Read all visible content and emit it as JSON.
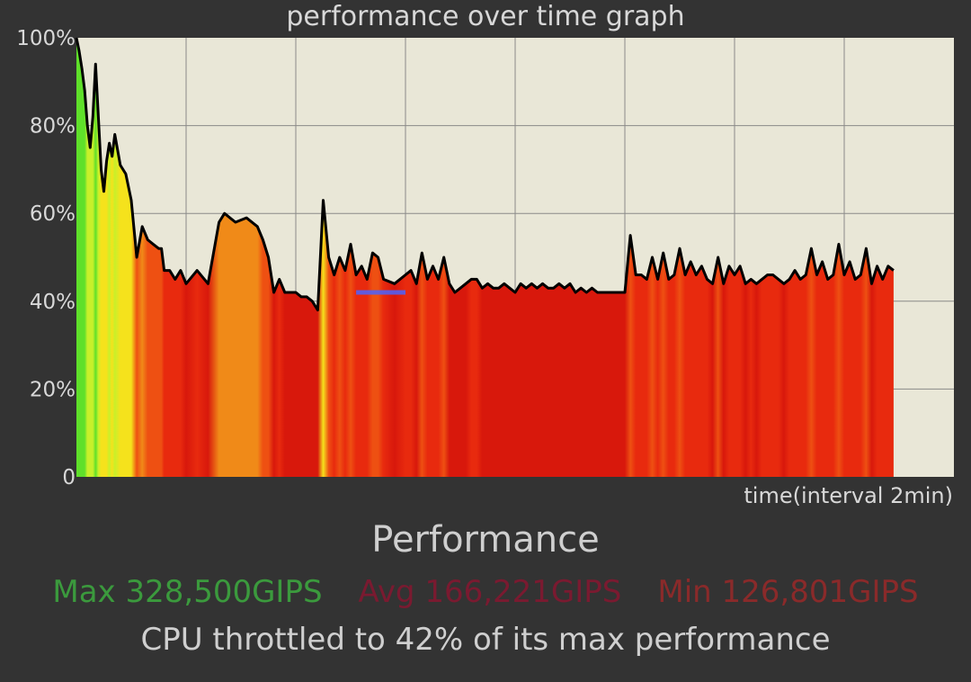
{
  "chart_data": {
    "type": "area",
    "title": "performance over time graph",
    "xlabel": "time(interval 2min)",
    "ylabel": "",
    "ylim": [
      0,
      100
    ],
    "y_ticks": [
      "0",
      "20%",
      "40%",
      "60%",
      "80%",
      "100%"
    ],
    "y_tick_values": [
      0,
      20,
      40,
      60,
      80,
      100
    ],
    "x_range": [
      0,
      16
    ],
    "x_grid": [
      2,
      4,
      6,
      8,
      10,
      12,
      14
    ],
    "grid": true,
    "series": [
      {
        "x": [
          0.0,
          0.05,
          0.1,
          0.15,
          0.2,
          0.25,
          0.3,
          0.35,
          0.4,
          0.45,
          0.5,
          0.55,
          0.6,
          0.65,
          0.7,
          0.8,
          0.9,
          1.0,
          1.1,
          1.2,
          1.3,
          1.4,
          1.5,
          1.55,
          1.6,
          1.7,
          1.8,
          1.9,
          2.0,
          2.2,
          2.4,
          2.6,
          2.7,
          2.9,
          3.1,
          3.3,
          3.4,
          3.5,
          3.6,
          3.7,
          3.8,
          3.9,
          4.0,
          4.1,
          4.2,
          4.3,
          4.4,
          4.5,
          4.6,
          4.7,
          4.8,
          4.9,
          5.0,
          5.1,
          5.2,
          5.3,
          5.4,
          5.5,
          5.6,
          5.8,
          6.0,
          6.1,
          6.2,
          6.3,
          6.4,
          6.5,
          6.6,
          6.7,
          6.8,
          6.9,
          7.0,
          7.1,
          7.2,
          7.3,
          7.4,
          7.5,
          7.6,
          7.7,
          7.8,
          7.9,
          8.0,
          8.1,
          8.2,
          8.3,
          8.4,
          8.5,
          8.6,
          8.7,
          8.8,
          8.9,
          9.0,
          9.1,
          9.2,
          9.3,
          9.4,
          9.5,
          9.6,
          9.7,
          9.8,
          9.9,
          10.0,
          10.1,
          10.2,
          10.3,
          10.4,
          10.5,
          10.6,
          10.7,
          10.8,
          10.9,
          11.0,
          11.1,
          11.2,
          11.3,
          11.4,
          11.5,
          11.6,
          11.7,
          11.8,
          11.9,
          12.0,
          12.1,
          12.2,
          12.3,
          12.4,
          12.5,
          12.6,
          12.7,
          12.8,
          12.9,
          13.0,
          13.1,
          13.2,
          13.3,
          13.4,
          13.5,
          13.6,
          13.7,
          13.8,
          13.9,
          14.0,
          14.1,
          14.2,
          14.3,
          14.4,
          14.5,
          14.6,
          14.7,
          14.8,
          14.9
        ],
        "values": [
          100,
          97,
          93,
          88,
          80,
          75,
          82,
          94,
          82,
          70,
          65,
          72,
          76,
          73,
          78,
          71,
          69,
          63,
          50,
          57,
          54,
          53,
          52,
          52,
          47,
          47,
          45,
          47,
          44,
          47,
          44,
          58,
          60,
          58,
          59,
          57,
          54,
          50,
          42,
          45,
          42,
          42,
          42,
          41,
          41,
          40,
          38,
          63,
          50,
          46,
          50,
          47,
          53,
          46,
          48,
          45,
          51,
          50,
          45,
          44,
          46,
          47,
          44,
          51,
          45,
          48,
          45,
          50,
          44,
          42,
          43,
          44,
          45,
          45,
          43,
          44,
          43,
          43,
          44,
          43,
          42,
          44,
          43,
          44,
          43,
          44,
          43,
          43,
          44,
          43,
          44,
          42,
          43,
          42,
          43,
          42,
          42,
          42,
          42,
          42,
          42,
          55,
          46,
          46,
          45,
          50,
          45,
          51,
          45,
          46,
          52,
          46,
          49,
          46,
          48,
          45,
          44,
          50,
          44,
          48,
          46,
          48,
          44,
          45,
          44,
          45,
          46,
          46,
          45,
          44,
          45,
          47,
          45,
          46,
          52,
          46,
          49,
          45,
          46,
          53,
          46,
          49,
          45,
          46,
          52,
          44,
          48,
          45,
          48,
          47
        ]
      }
    ]
  },
  "summary": {
    "title": "Performance",
    "max": "Max 328,500GIPS",
    "avg": "Avg 166,221GIPS",
    "min": "Min 126,801GIPS",
    "throttle": "CPU throttled to 42% of its max performance"
  },
  "colors": {
    "background": "#333333",
    "plot_background": "#e9e7d7",
    "grid": "#8a8a88",
    "line": "#000000",
    "reference_line": "#4a63ff",
    "max_text": "#3b9a3d",
    "avg_text": "#7a1a30",
    "min_text": "#8a2a2a"
  },
  "reference_line": {
    "y": 42,
    "x_start": 5.1,
    "x_end": 6.0
  }
}
